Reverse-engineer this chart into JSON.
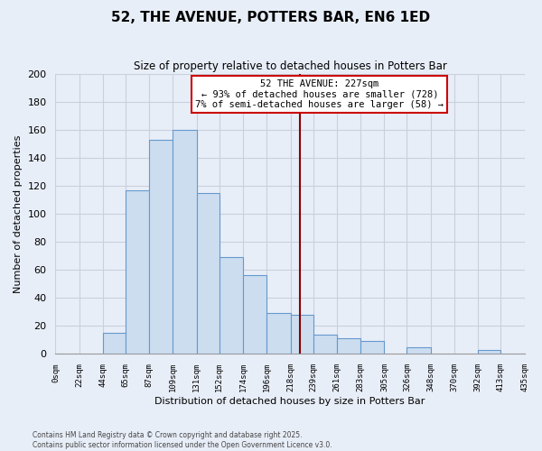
{
  "title": "52, THE AVENUE, POTTERS BAR, EN6 1ED",
  "subtitle": "Size of property relative to detached houses in Potters Bar",
  "xlabel": "Distribution of detached houses by size in Potters Bar",
  "ylabel": "Number of detached properties",
  "background_color": "#e8eef8",
  "bar_color": "#ccddf0",
  "bar_edge_color": "#6699cc",
  "grid_color": "#c8d0dc",
  "bin_edges": [
    0,
    22,
    44,
    65,
    87,
    109,
    131,
    152,
    174,
    196,
    218,
    239,
    261,
    283,
    305,
    326,
    348,
    370,
    392,
    413,
    435
  ],
  "bin_labels": [
    "0sqm",
    "22sqm",
    "44sqm",
    "65sqm",
    "87sqm",
    "109sqm",
    "131sqm",
    "152sqm",
    "174sqm",
    "196sqm",
    "218sqm",
    "239sqm",
    "261sqm",
    "283sqm",
    "305sqm",
    "326sqm",
    "348sqm",
    "370sqm",
    "392sqm",
    "413sqm",
    "435sqm"
  ],
  "counts": [
    0,
    0,
    15,
    117,
    153,
    160,
    115,
    69,
    56,
    29,
    28,
    14,
    11,
    9,
    0,
    5,
    0,
    0,
    3,
    0
  ],
  "vline_x": 227,
  "vline_color": "#8b0000",
  "annotation_line1": "52 THE AVENUE: 227sqm",
  "annotation_line2": "← 93% of detached houses are smaller (728)",
  "annotation_line3": "7% of semi-detached houses are larger (58) →",
  "annotation_box_color": "#ffffff",
  "annotation_box_edge": "#cc0000",
  "ylim": [
    0,
    200
  ],
  "yticks": [
    0,
    20,
    40,
    60,
    80,
    100,
    120,
    140,
    160,
    180,
    200
  ],
  "footnote1": "Contains HM Land Registry data © Crown copyright and database right 2025.",
  "footnote2": "Contains public sector information licensed under the Open Government Licence v3.0."
}
